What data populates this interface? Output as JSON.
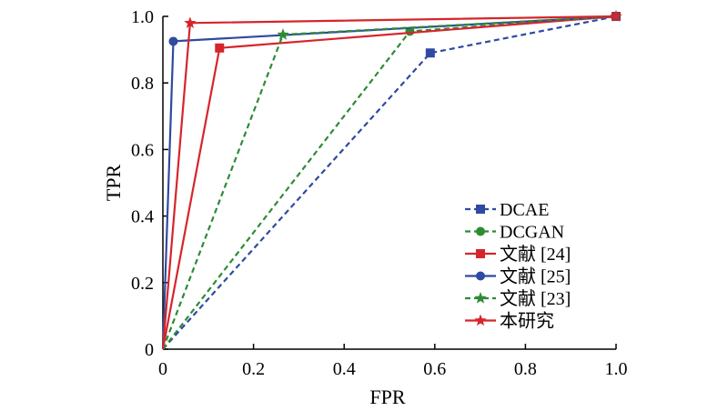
{
  "chart_data": {
    "type": "line",
    "xlabel": "FPR",
    "ylabel": "TPR",
    "xlim": [
      0,
      1.0
    ],
    "ylim": [
      0,
      1.0
    ],
    "x_ticks": [
      "0",
      "0.2",
      "0.4",
      "0.6",
      "0.8",
      "1.0"
    ],
    "y_ticks": [
      "0",
      "0.2",
      "0.4",
      "0.6",
      "0.8",
      "1.0"
    ],
    "legend_position": "bottom-right",
    "grid": false,
    "series": [
      {
        "name": "DCAE",
        "color": "#2f4aa0",
        "dash": "dashed",
        "marker": "square",
        "points": [
          [
            0,
            0
          ],
          [
            0.59,
            0.89
          ],
          [
            1.0,
            1.0
          ]
        ]
      },
      {
        "name": "DCGAN",
        "color": "#2e8b34",
        "dash": "dashed",
        "marker": "circle",
        "points": [
          [
            0,
            0
          ],
          [
            0.545,
            0.955
          ],
          [
            1.0,
            1.0
          ]
        ]
      },
      {
        "name": "文献 [24]",
        "color": "#d6252b",
        "dash": "solid",
        "marker": "square",
        "points": [
          [
            0,
            0
          ],
          [
            0.125,
            0.905
          ],
          [
            1.0,
            1.0
          ]
        ]
      },
      {
        "name": "文献 [25]",
        "color": "#2f4aa0",
        "dash": "solid",
        "marker": "circle",
        "points": [
          [
            0,
            0
          ],
          [
            0.023,
            0.925
          ],
          [
            1.0,
            1.0
          ]
        ]
      },
      {
        "name": "文献 [23]",
        "color": "#2e8b34",
        "dash": "dashed",
        "marker": "star",
        "points": [
          [
            0,
            0
          ],
          [
            0.265,
            0.945
          ],
          [
            1.0,
            1.0
          ]
        ]
      },
      {
        "name": "本研究",
        "color": "#d6252b",
        "dash": "solid",
        "marker": "star",
        "points": [
          [
            0,
            0
          ],
          [
            0.06,
            0.98
          ],
          [
            1.0,
            1.0
          ]
        ]
      }
    ]
  }
}
